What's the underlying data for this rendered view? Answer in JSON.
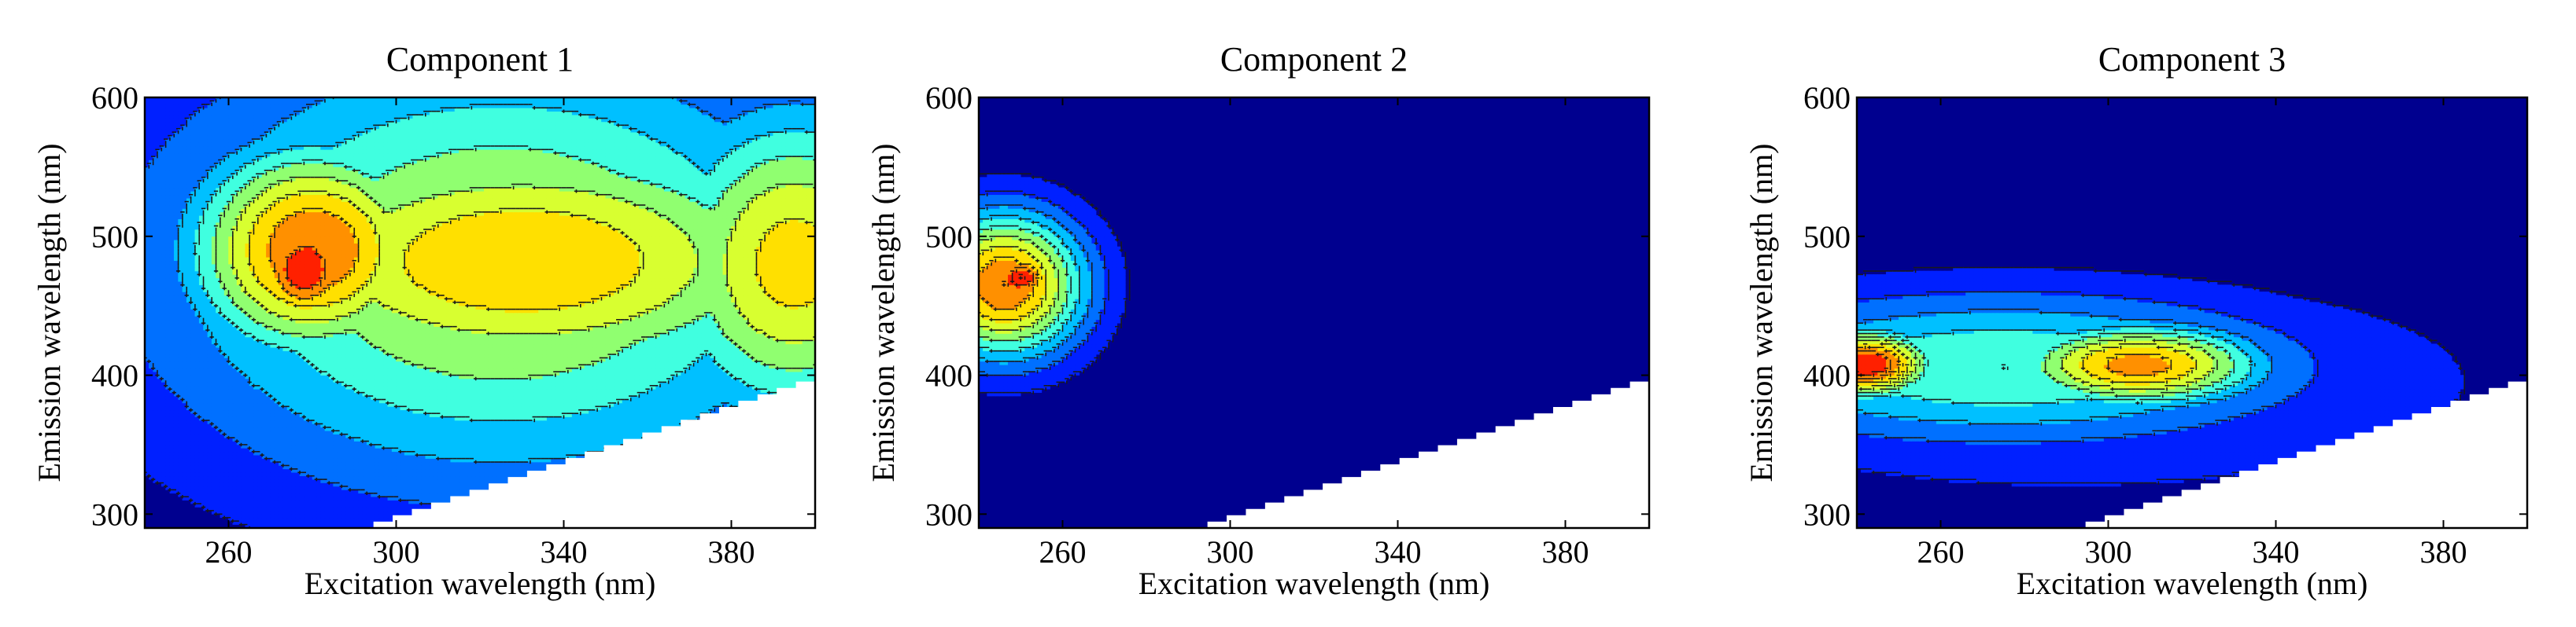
{
  "figure": {
    "colors": {
      "background_fill": "#00008f",
      "contour_levels": [
        "#00008f",
        "#0020ff",
        "#0070ff",
        "#00c0ff",
        "#40ffe0",
        "#90ff70",
        "#d8ff30",
        "#ffe000",
        "#ff9000",
        "#ff2000",
        "#a00000"
      ],
      "contour_line": "#1a1a1a",
      "masked_region": "#ffffff"
    }
  },
  "chart_data": [
    {
      "type": "heatmap",
      "title": "Component 1",
      "xlabel": "Excitation wavelength (nm)",
      "ylabel": "Emission wavelength (nm)",
      "xlim": [
        240,
        400
      ],
      "ylim": [
        290,
        600
      ],
      "xticks": [
        260,
        300,
        340,
        380
      ],
      "yticks": [
        300,
        400,
        500,
        600
      ],
      "grid": false,
      "masked_scatter_boundary": [
        [
          290,
          290
        ],
        [
          400,
          400
        ]
      ],
      "peaks": [
        {
          "ex": 278,
          "em": 476,
          "level": 10,
          "sx": 10,
          "sy": 32
        },
        {
          "ex": 280,
          "em": 490,
          "level": 9,
          "sx": 22,
          "sy": 58
        },
        {
          "ex": 330,
          "em": 482,
          "level": 8,
          "sx": 55,
          "sy": 70
        },
        {
          "ex": 395,
          "em": 480,
          "level": 7.5,
          "sx": 25,
          "sy": 85
        },
        {
          "ex": 325,
          "em": 480,
          "level": 6.5,
          "sx": 60,
          "sy": 115
        }
      ],
      "contour_levels": [
        1,
        2,
        3,
        4,
        5,
        6,
        7,
        8,
        9,
        10
      ]
    },
    {
      "type": "heatmap",
      "title": "Component 2",
      "xlabel": "Excitation wavelength (nm)",
      "ylabel": "Emission wavelength (nm)",
      "xlim": [
        240,
        400
      ],
      "ylim": [
        290,
        600
      ],
      "xticks": [
        260,
        300,
        340,
        380
      ],
      "yticks": [
        300,
        400,
        500,
        600
      ],
      "grid": false,
      "masked_scatter_boundary": [
        [
          290,
          290
        ],
        [
          400,
          400
        ]
      ],
      "peaks": [
        {
          "ex": 250,
          "em": 470,
          "level": 10,
          "sx": 6,
          "sy": 14
        },
        {
          "ex": 246,
          "em": 465,
          "level": 9,
          "sx": 14,
          "sy": 38
        }
      ],
      "contour_levels": [
        1,
        2,
        3,
        4,
        5,
        6,
        7,
        8,
        9,
        10
      ]
    },
    {
      "type": "heatmap",
      "title": "Component 3",
      "xlabel": "Excitation wavelength (nm)",
      "ylabel": "Emission wavelength (nm)",
      "xlim": [
        240,
        400
      ],
      "ylim": [
        290,
        600
      ],
      "xticks": [
        260,
        300,
        340,
        380
      ],
      "yticks": [
        300,
        400,
        500,
        600
      ],
      "grid": false,
      "masked_scatter_boundary": [
        [
          290,
          290
        ],
        [
          400,
          400
        ]
      ],
      "peaks": [
        {
          "ex": 242,
          "em": 408,
          "level": 10,
          "sx": 12,
          "sy": 18
        },
        {
          "ex": 307,
          "em": 407,
          "level": 8.5,
          "sx": 22,
          "sy": 22
        },
        {
          "ex": 275,
          "em": 405,
          "level": 5,
          "sx": 55,
          "sy": 40
        },
        {
          "ex": 290,
          "em": 395,
          "level": 2.5,
          "sx": 70,
          "sy": 55
        }
      ],
      "contour_levels": [
        1,
        2,
        3,
        4,
        5,
        6,
        7,
        8,
        9,
        10
      ]
    }
  ]
}
